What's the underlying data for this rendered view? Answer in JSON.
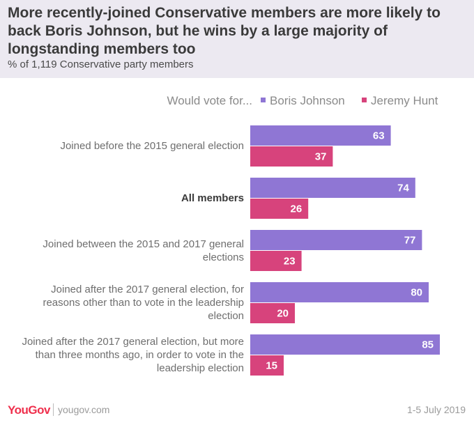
{
  "chart_data": {
    "type": "bar",
    "orientation": "horizontal",
    "title": "More recently-joined Conservative members are more likely to back Boris Johnson, but he wins by a large majority of longstanding members too",
    "subtitle": "% of 1,119 Conservative party members",
    "legend_prefix": "Would vote for...",
    "categories": [
      {
        "label": "Joined before the 2015 general election",
        "bold": false
      },
      {
        "label": "All members",
        "bold": true
      },
      {
        "label": "Joined between the 2015 and 2017 general elections",
        "bold": false
      },
      {
        "label": "Joined after the 2017 general election, for reasons other than to vote in the leadership election",
        "bold": false
      },
      {
        "label": "Joined after the 2017 general election, but more than three months ago, in order to vote in the leadership election",
        "bold": false
      }
    ],
    "series": [
      {
        "name": "Boris Johnson",
        "color": "#8f76d4",
        "values": [
          63,
          74,
          77,
          80,
          85
        ]
      },
      {
        "name": "Jeremy Hunt",
        "color": "#d7437c",
        "values": [
          37,
          26,
          23,
          20,
          15
        ]
      }
    ],
    "xlim": [
      0,
      100
    ],
    "grid": false
  },
  "footer": {
    "logo": "YouGov",
    "url": "yougov.com",
    "date": "1-5 July 2019"
  }
}
